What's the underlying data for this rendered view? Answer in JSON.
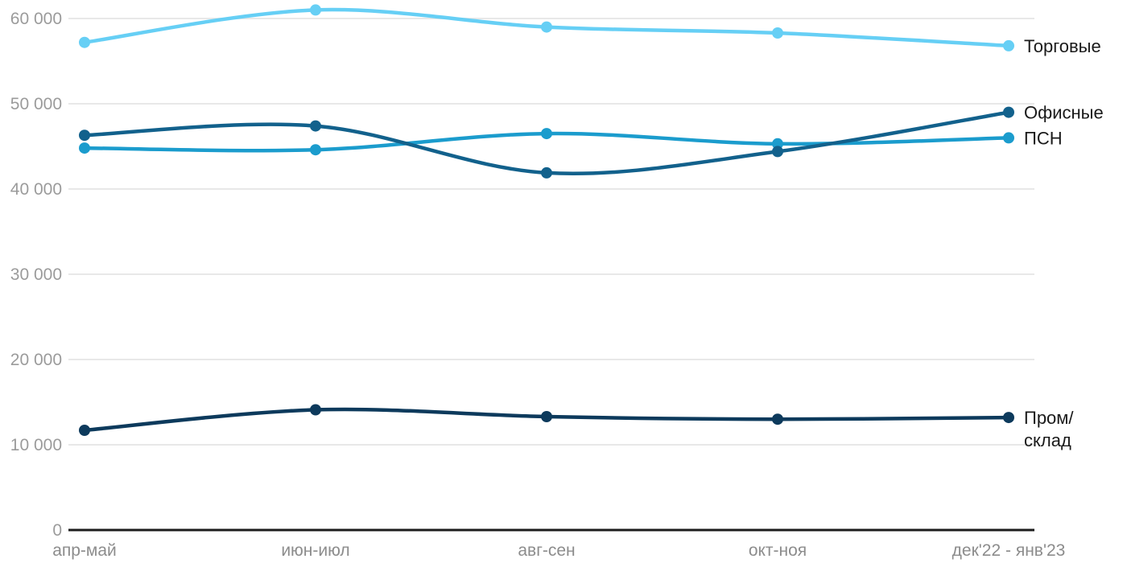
{
  "chart_data": {
    "type": "line",
    "title": "",
    "xlabel": "",
    "ylabel": "",
    "categories": [
      "апр-май",
      "июн-июл",
      "авг-сен",
      "окт-ноя",
      "дек'22 - янв'23"
    ],
    "series": [
      {
        "name": "Торговые",
        "label_lines": [
          "Торговые"
        ],
        "color": "#66cff5",
        "values": [
          57200,
          61000,
          59000,
          58300,
          56800
        ],
        "z_index": 1
      },
      {
        "name": "Офисные",
        "label_lines": [
          "Офисные"
        ],
        "color": "#12618c",
        "values": [
          46300,
          47400,
          41900,
          44400,
          49000
        ],
        "z_index": 3
      },
      {
        "name": "ПСН",
        "label_lines": [
          "ПСН"
        ],
        "color": "#1b9ccd",
        "values": [
          44800,
          44600,
          46500,
          45300,
          46000
        ],
        "z_index": 2
      },
      {
        "name": "Пром/склад",
        "label_lines": [
          "Пром/",
          "склад"
        ],
        "color": "#0d3a5c",
        "values": [
          11700,
          14100,
          13300,
          13000,
          13200
        ],
        "z_index": 1
      }
    ],
    "y_ticks": [
      {
        "value": 0,
        "label": "0"
      },
      {
        "value": 10000,
        "label": "10 000"
      },
      {
        "value": 20000,
        "label": "20 000"
      },
      {
        "value": 30000,
        "label": "30 000"
      },
      {
        "value": 40000,
        "label": "40 000"
      },
      {
        "value": 50000,
        "label": "50 000"
      },
      {
        "value": 60000,
        "label": "60 000"
      }
    ],
    "ylim": [
      0,
      63000
    ],
    "grid": "horizontal",
    "legend_position": "line-end-right",
    "palette": {
      "background": "#ffffff",
      "gridline": "#e8e8e8",
      "axis_line": "#1c1c1c",
      "y_tick_text": "#9b9b9b",
      "x_tick_text": "#8c8c8c",
      "series_label_text": "#1a1a1a"
    }
  }
}
